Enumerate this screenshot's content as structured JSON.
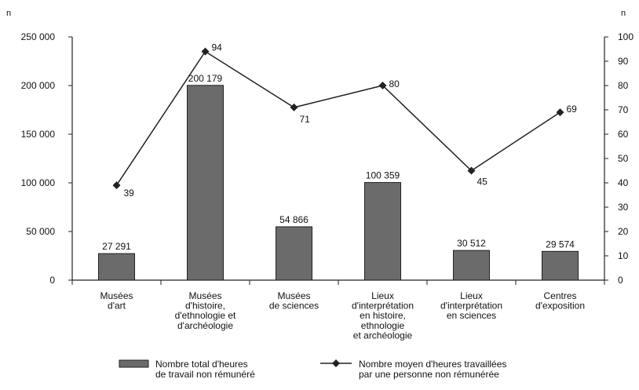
{
  "chart_data": {
    "type": "bar",
    "categories": [
      [
        "Musées",
        "d'art"
      ],
      [
        "Musées",
        "d'histoire,",
        "d'ethnologie et",
        "d'archéologie"
      ],
      [
        "Musées",
        "de sciences"
      ],
      [
        "Lieux",
        "d'interprétation",
        "en histoire,",
        "ethnologie",
        "et archéologie"
      ],
      [
        "Lieux",
        "d'interprétation",
        "en sciences"
      ],
      [
        "Centres",
        "d'exposition"
      ]
    ],
    "series": [
      {
        "name": "Nombre total d'heures de travail non rémunéré",
        "kind": "bar",
        "axis": "left",
        "values": [
          27291,
          200179,
          54866,
          100359,
          30512,
          29574
        ],
        "labels": [
          "27 291",
          "200 179",
          "54 866",
          "100 359",
          "30 512",
          "29 574"
        ]
      },
      {
        "name": "Nombre moyen d'heures travaillées par une personne non rémunérée",
        "kind": "line",
        "axis": "right",
        "values": [
          39,
          94,
          71,
          80,
          45,
          69
        ],
        "labels": [
          "39",
          "94",
          "71",
          "80",
          "45",
          "69"
        ]
      }
    ],
    "y_left": {
      "label": "n",
      "range": [
        0,
        250000
      ],
      "ticks": [
        0,
        50000,
        100000,
        150000,
        200000,
        250000
      ],
      "tick_labels": [
        "0",
        "50 000",
        "100 000",
        "150 000",
        "200 000",
        "250 000"
      ]
    },
    "y_right": {
      "label": "n",
      "range": [
        0,
        100
      ],
      "ticks": [
        0,
        10,
        20,
        30,
        40,
        50,
        60,
        70,
        80,
        90,
        100
      ],
      "tick_labels": [
        "0",
        "10",
        "20",
        "30",
        "40",
        "50",
        "60",
        "70",
        "80",
        "90",
        "100"
      ]
    },
    "legend": {
      "position": "bottom",
      "bar_label": [
        "Nombre total d'heures",
        "de travail non rémunéré"
      ],
      "line_label": [
        "Nombre moyen d'heures travaillées",
        "par une personne non rémunérée"
      ]
    },
    "grid": false,
    "colors": {
      "bar": "#6b6b6b",
      "bar_stroke": "#222222",
      "line": "#222222",
      "axis": "#222222"
    }
  }
}
